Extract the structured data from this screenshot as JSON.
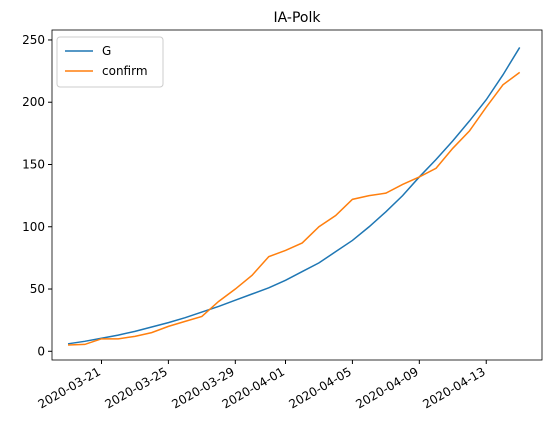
{
  "chart_data": {
    "type": "line",
    "title": "IA-Polk",
    "x": [
      "2020-03-19",
      "2020-03-20",
      "2020-03-21",
      "2020-03-22",
      "2020-03-23",
      "2020-03-24",
      "2020-03-25",
      "2020-03-26",
      "2020-03-27",
      "2020-03-28",
      "2020-03-29",
      "2020-03-30",
      "2020-03-31",
      "2020-04-01",
      "2020-04-02",
      "2020-04-03",
      "2020-04-04",
      "2020-04-05",
      "2020-04-06",
      "2020-04-07",
      "2020-04-08",
      "2020-04-09",
      "2020-04-10",
      "2020-04-11",
      "2020-04-12",
      "2020-04-13",
      "2020-04-14",
      "2020-04-15"
    ],
    "series": [
      {
        "name": "G",
        "color": "#1f77b4",
        "values": [
          6,
          8,
          10.5,
          13,
          16,
          19.5,
          23,
          27,
          31.5,
          36,
          41,
          46,
          51,
          57,
          64,
          71,
          80,
          89,
          100,
          112,
          125,
          140,
          154,
          169,
          185,
          202,
          222,
          244
        ]
      },
      {
        "name": "confirm",
        "color": "#ff7f0e",
        "values": [
          5,
          5.5,
          10,
          10,
          12,
          15,
          20,
          24,
          28,
          40,
          50,
          61,
          76,
          81,
          87,
          100,
          109,
          122,
          125,
          127,
          134,
          140,
          147,
          163,
          177,
          196,
          214,
          224
        ]
      }
    ],
    "xlim": [
      "2020-03-18T01:00",
      "2020-04-16T08:00"
    ],
    "xticks": [
      "2020-03-21",
      "2020-03-25",
      "2020-03-29",
      "2020-04-01",
      "2020-04-05",
      "2020-04-09",
      "2020-04-13"
    ],
    "ylim": [
      -7,
      258
    ],
    "yticks": [
      0,
      50,
      100,
      150,
      200,
      250
    ],
    "legend": "upper left"
  }
}
